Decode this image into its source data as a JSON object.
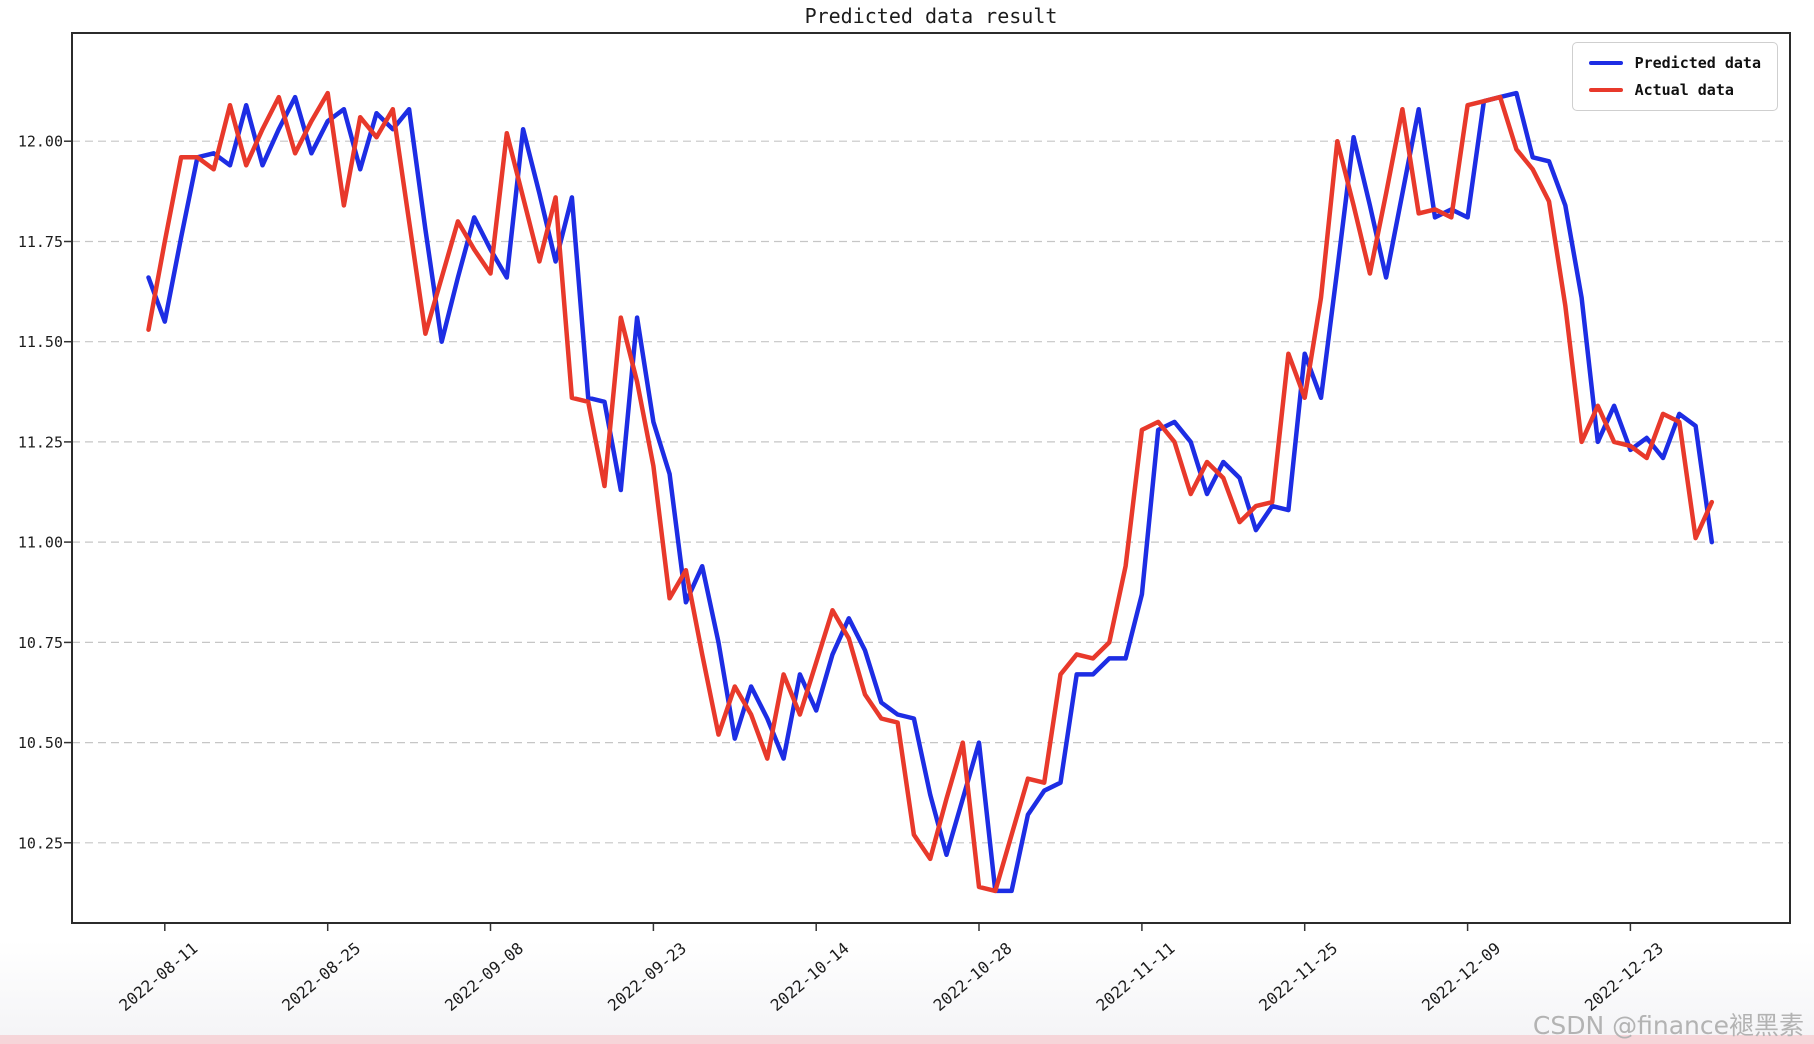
{
  "page": {
    "background": "#ffffff",
    "bottom_strip_color": "#f6d5d9"
  },
  "watermark": "CSDN @finance褪黑素",
  "chart_data": {
    "type": "line",
    "title": "Predicted data result",
    "xlabel": "",
    "ylabel": "",
    "grid": "horizontal-dashed",
    "legend_position": "top-right",
    "ylim": [
      10.05,
      12.27
    ],
    "xlim_index": [
      -4.7,
      100.8
    ],
    "y_ticks": [
      10.25,
      10.5,
      10.75,
      11.0,
      11.25,
      11.5,
      11.75,
      12.0
    ],
    "x_tick_indices": [
      1,
      11,
      21,
      31,
      41,
      51,
      61,
      71,
      81,
      91
    ],
    "x_tick_labels": [
      "2022-08-11",
      "2022-08-25",
      "2022-09-08",
      "2022-09-23",
      "2022-10-14",
      "2022-10-28",
      "2022-11-11",
      "2022-11-25",
      "2022-12-09",
      "2022-12-23"
    ],
    "x": [
      "2022-08-10",
      "2022-08-11",
      "2022-08-12",
      "2022-08-15",
      "2022-08-16",
      "2022-08-17",
      "2022-08-18",
      "2022-08-19",
      "2022-08-22",
      "2022-08-23",
      "2022-08-24",
      "2022-08-25",
      "2022-08-26",
      "2022-08-29",
      "2022-08-30",
      "2022-08-31",
      "2022-09-01",
      "2022-09-02",
      "2022-09-05",
      "2022-09-06",
      "2022-09-07",
      "2022-09-08",
      "2022-09-09",
      "2022-09-13",
      "2022-09-14",
      "2022-09-15",
      "2022-09-16",
      "2022-09-19",
      "2022-09-20",
      "2022-09-21",
      "2022-09-22",
      "2022-09-23",
      "2022-09-26",
      "2022-09-27",
      "2022-09-28",
      "2022-09-29",
      "2022-09-30",
      "2022-10-10",
      "2022-10-11",
      "2022-10-12",
      "2022-10-13",
      "2022-10-14",
      "2022-10-17",
      "2022-10-18",
      "2022-10-19",
      "2022-10-20",
      "2022-10-21",
      "2022-10-24",
      "2022-10-25",
      "2022-10-26",
      "2022-10-27",
      "2022-10-28",
      "2022-10-31",
      "2022-11-01",
      "2022-11-02",
      "2022-11-03",
      "2022-11-04",
      "2022-11-07",
      "2022-11-08",
      "2022-11-09",
      "2022-11-10",
      "2022-11-11",
      "2022-11-14",
      "2022-11-15",
      "2022-11-16",
      "2022-11-17",
      "2022-11-18",
      "2022-11-21",
      "2022-11-22",
      "2022-11-23",
      "2022-11-24",
      "2022-11-25",
      "2022-11-28",
      "2022-11-29",
      "2022-11-30",
      "2022-12-01",
      "2022-12-02",
      "2022-12-05",
      "2022-12-06",
      "2022-12-07",
      "2022-12-08",
      "2022-12-09",
      "2022-12-12",
      "2022-12-13",
      "2022-12-14",
      "2022-12-15",
      "2022-12-16",
      "2022-12-19",
      "2022-12-20",
      "2022-12-21",
      "2022-12-22",
      "2022-12-23",
      "2022-12-26",
      "2022-12-27",
      "2022-12-28",
      "2022-12-29",
      "2022-12-30"
    ],
    "series": [
      {
        "name": "Predicted data",
        "color": "#1d2de4",
        "values": [
          11.66,
          11.55,
          11.76,
          11.96,
          11.97,
          11.94,
          12.09,
          11.94,
          12.03,
          12.11,
          11.97,
          12.05,
          12.08,
          11.93,
          12.07,
          12.03,
          12.08,
          11.78,
          11.5,
          11.66,
          11.81,
          11.73,
          11.66,
          12.03,
          11.87,
          11.7,
          11.86,
          11.36,
          11.35,
          11.13,
          11.56,
          11.3,
          11.17,
          10.85,
          10.94,
          10.75,
          10.51,
          10.64,
          10.56,
          10.46,
          10.67,
          10.58,
          10.72,
          10.81,
          10.73,
          10.6,
          10.57,
          10.56,
          10.37,
          10.22,
          10.36,
          10.5,
          10.13,
          10.13,
          10.32,
          10.38,
          10.4,
          10.67,
          10.67,
          10.71,
          10.71,
          10.87,
          11.28,
          11.3,
          11.25,
          11.12,
          11.2,
          11.16,
          11.03,
          11.09,
          11.08,
          11.47,
          11.36,
          11.68,
          12.01,
          11.84,
          11.66,
          11.87,
          12.08,
          11.81,
          11.83,
          11.81,
          12.1,
          12.11,
          12.12,
          11.96,
          11.95,
          11.84,
          11.61,
          11.25,
          11.34,
          11.23,
          11.26,
          11.21,
          11.32,
          11.29,
          11.0
        ]
      },
      {
        "name": "Actual data",
        "color": "#e8392b",
        "values": [
          11.53,
          11.75,
          11.96,
          11.96,
          11.93,
          12.09,
          11.94,
          12.03,
          12.11,
          11.97,
          12.05,
          12.12,
          11.84,
          12.06,
          12.01,
          12.08,
          11.8,
          11.52,
          11.66,
          11.8,
          11.73,
          11.67,
          12.02,
          11.86,
          11.7,
          11.86,
          11.36,
          11.35,
          11.14,
          11.56,
          11.4,
          11.19,
          10.86,
          10.93,
          10.72,
          10.52,
          10.64,
          10.57,
          10.46,
          10.67,
          10.57,
          10.7,
          10.83,
          10.76,
          10.62,
          10.56,
          10.55,
          10.27,
          10.21,
          10.36,
          10.5,
          10.14,
          10.13,
          10.27,
          10.41,
          10.4,
          10.67,
          10.72,
          10.71,
          10.75,
          10.94,
          11.28,
          11.3,
          11.25,
          11.12,
          11.2,
          11.16,
          11.05,
          11.09,
          11.1,
          11.47,
          11.36,
          11.61,
          12.0,
          11.84,
          11.67,
          11.87,
          12.08,
          11.82,
          11.83,
          11.81,
          12.09,
          12.1,
          12.11,
          11.98,
          11.93,
          11.85,
          11.59,
          11.25,
          11.34,
          11.25,
          11.24,
          11.21,
          11.32,
          11.3,
          11.01,
          11.1
        ]
      }
    ]
  }
}
